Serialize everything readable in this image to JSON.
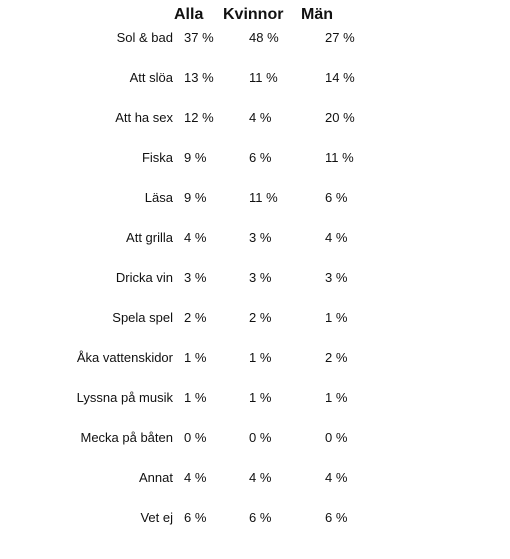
{
  "headers": {
    "alla": "Alla",
    "kvinnor": "Kvinnor",
    "man": "Män"
  },
  "rows": [
    {
      "label": "Sol & bad",
      "alla": "37 %",
      "kvinnor": "48 %",
      "man": "27 %"
    },
    {
      "label": "Att slöa",
      "alla": "13 %",
      "kvinnor": "11 %",
      "man": "14 %"
    },
    {
      "label": "Att ha sex",
      "alla": "12 %",
      "kvinnor": "4 %",
      "man": "20 %"
    },
    {
      "label": "Fiska",
      "alla": "9 %",
      "kvinnor": "6 %",
      "man": "11 %"
    },
    {
      "label": "Läsa",
      "alla": "9 %",
      "kvinnor": "11 %",
      "man": "6 %"
    },
    {
      "label": "Att grilla",
      "alla": "4 %",
      "kvinnor": "3 %",
      "man": "4 %"
    },
    {
      "label": "Dricka vin",
      "alla": "3 %",
      "kvinnor": "3 %",
      "man": "3 %"
    },
    {
      "label": "Spela spel",
      "alla": "2 %",
      "kvinnor": "2 %",
      "man": "1 %"
    },
    {
      "label": "Åka vattenskidor",
      "alla": "1 %",
      "kvinnor": "1 %",
      "man": "2 %"
    },
    {
      "label": "Lyssna på musik",
      "alla": "1 %",
      "kvinnor": "1 %",
      "man": "1 %"
    },
    {
      "label": "Mecka på båten",
      "alla": "0 %",
      "kvinnor": "0 %",
      "man": "0 %"
    },
    {
      "label": "Annat",
      "alla": "4 %",
      "kvinnor": "4 %",
      "man": "4 %"
    },
    {
      "label": "Vet ej",
      "alla": "6 %",
      "kvinnor": "6 %",
      "man": "6 %"
    }
  ]
}
